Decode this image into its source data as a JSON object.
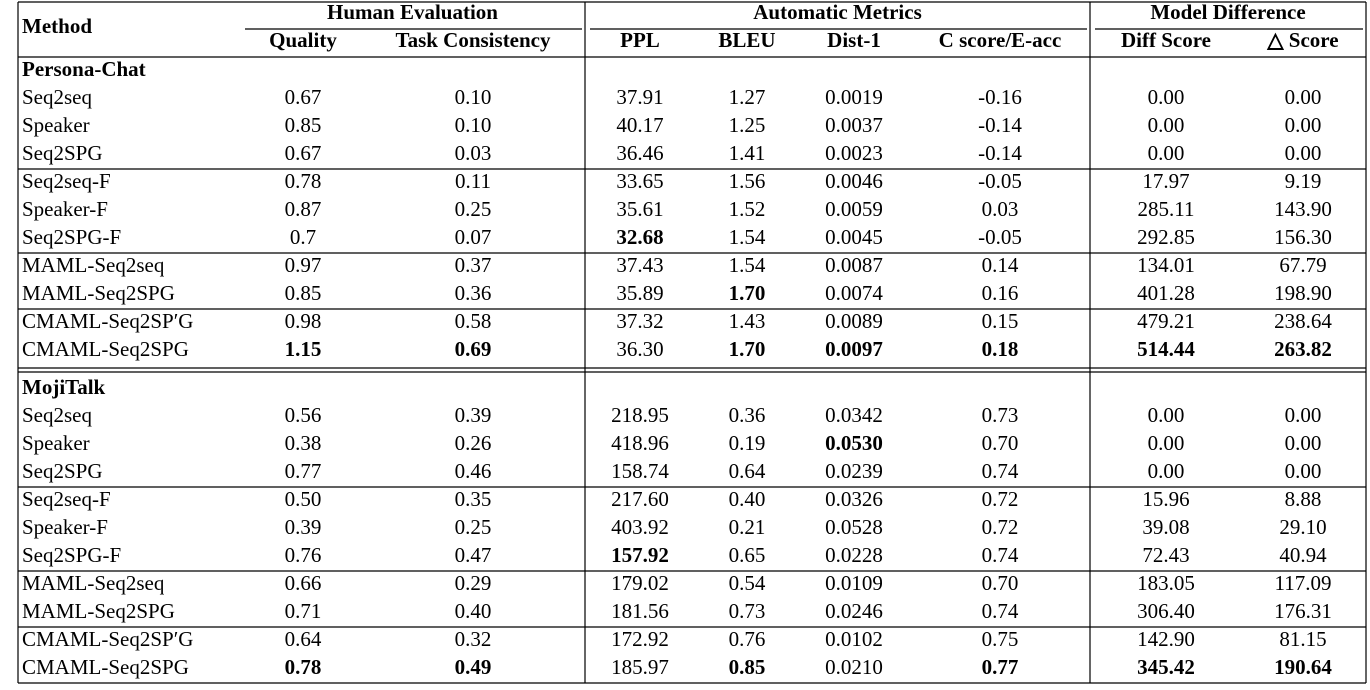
{
  "table": {
    "method_header": "Method",
    "groups": [
      {
        "title": "Human Evaluation",
        "columns": [
          "Quality",
          "Task Consistency"
        ]
      },
      {
        "title": "Automatic Metrics",
        "columns": [
          "PPL",
          "BLEU",
          "Dist-1",
          "C score/E-acc"
        ]
      },
      {
        "title": "Model Difference",
        "columns": [
          "Diff Score",
          "△ Score"
        ]
      }
    ],
    "sections": [
      {
        "title": "Persona-Chat",
        "blocks": [
          [
            {
              "method": "Seq2seq",
              "cells": [
                "0.67",
                "0.10",
                "37.91",
                "1.27",
                "0.0019",
                "-0.16",
                "0.00",
                "0.00"
              ],
              "bold": []
            },
            {
              "method": "Speaker",
              "cells": [
                "0.85",
                "0.10",
                "40.17",
                "1.25",
                "0.0037",
                "-0.14",
                "0.00",
                "0.00"
              ],
              "bold": []
            },
            {
              "method": "Seq2SPG",
              "cells": [
                "0.67",
                "0.03",
                "36.46",
                "1.41",
                "0.0023",
                "-0.14",
                "0.00",
                "0.00"
              ],
              "bold": []
            }
          ],
          [
            {
              "method": "Seq2seq-F",
              "cells": [
                "0.78",
                "0.11",
                "33.65",
                "1.56",
                "0.0046",
                "-0.05",
                "17.97",
                "9.19"
              ],
              "bold": []
            },
            {
              "method": "Speaker-F",
              "cells": [
                "0.87",
                "0.25",
                "35.61",
                "1.52",
                "0.0059",
                "0.03",
                "285.11",
                "143.90"
              ],
              "bold": []
            },
            {
              "method": "Seq2SPG-F",
              "cells": [
                "0.7",
                "0.07",
                "32.68",
                "1.54",
                "0.0045",
                "-0.05",
                "292.85",
                "156.30"
              ],
              "bold": [
                2
              ]
            }
          ],
          [
            {
              "method": "MAML-Seq2seq",
              "cells": [
                "0.97",
                "0.37",
                "37.43",
                "1.54",
                "0.0087",
                "0.14",
                "134.01",
                "67.79"
              ],
              "bold": []
            },
            {
              "method": "MAML-Seq2SPG",
              "cells": [
                "0.85",
                "0.36",
                "35.89",
                "1.70",
                "0.0074",
                "0.16",
                "401.28",
                "198.90"
              ],
              "bold": [
                3
              ]
            }
          ],
          [
            {
              "method": "CMAML-Seq2SP′G",
              "cells": [
                "0.98",
                "0.58",
                "37.32",
                "1.43",
                "0.0089",
                "0.15",
                "479.21",
                "238.64"
              ],
              "bold": []
            },
            {
              "method": "CMAML-Seq2SPG",
              "cells": [
                "1.15",
                "0.69",
                "36.30",
                "1.70",
                "0.0097",
                "0.18",
                "514.44",
                "263.82"
              ],
              "bold": [
                0,
                1,
                3,
                4,
                5,
                6,
                7
              ]
            }
          ]
        ]
      },
      {
        "title": "MojiTalk",
        "blocks": [
          [
            {
              "method": "Seq2seq",
              "cells": [
                "0.56",
                "0.39",
                "218.95",
                "0.36",
                "0.0342",
                "0.73",
                "0.00",
                "0.00"
              ],
              "bold": []
            },
            {
              "method": "Speaker",
              "cells": [
                "0.38",
                "0.26",
                "418.96",
                "0.19",
                "0.0530",
                "0.70",
                "0.00",
                "0.00"
              ],
              "bold": [
                4
              ]
            },
            {
              "method": "Seq2SPG",
              "cells": [
                "0.77",
                "0.46",
                "158.74",
                "0.64",
                "0.0239",
                "0.74",
                "0.00",
                "0.00"
              ],
              "bold": []
            }
          ],
          [
            {
              "method": "Seq2seq-F",
              "cells": [
                "0.50",
                "0.35",
                "217.60",
                "0.40",
                "0.0326",
                "0.72",
                "15.96",
                "8.88"
              ],
              "bold": []
            },
            {
              "method": "Speaker-F",
              "cells": [
                "0.39",
                "0.25",
                "403.92",
                "0.21",
                "0.0528",
                "0.72",
                "39.08",
                "29.10"
              ],
              "bold": []
            },
            {
              "method": "Seq2SPG-F",
              "cells": [
                "0.76",
                "0.47",
                "157.92",
                "0.65",
                "0.0228",
                "0.74",
                "72.43",
                "40.94"
              ],
              "bold": [
                2
              ]
            }
          ],
          [
            {
              "method": "MAML-Seq2seq",
              "cells": [
                "0.66",
                "0.29",
                "179.02",
                "0.54",
                "0.0109",
                "0.70",
                "183.05",
                "117.09"
              ],
              "bold": []
            },
            {
              "method": "MAML-Seq2SPG",
              "cells": [
                "0.71",
                "0.40",
                "181.56",
                "0.73",
                "0.0246",
                "0.74",
                "306.40",
                "176.31"
              ],
              "bold": []
            }
          ],
          [
            {
              "method": "CMAML-Seq2SP′G",
              "cells": [
                "0.64",
                "0.32",
                "172.92",
                "0.76",
                "0.0102",
                "0.75",
                "142.90",
                "81.15"
              ],
              "bold": []
            },
            {
              "method": "CMAML-Seq2SPG",
              "cells": [
                "0.78",
                "0.49",
                "185.97",
                "0.85",
                "0.0210",
                "0.77",
                "345.42",
                "190.64"
              ],
              "bold": [
                0,
                1,
                3,
                5,
                6,
                7
              ]
            }
          ]
        ]
      }
    ]
  }
}
